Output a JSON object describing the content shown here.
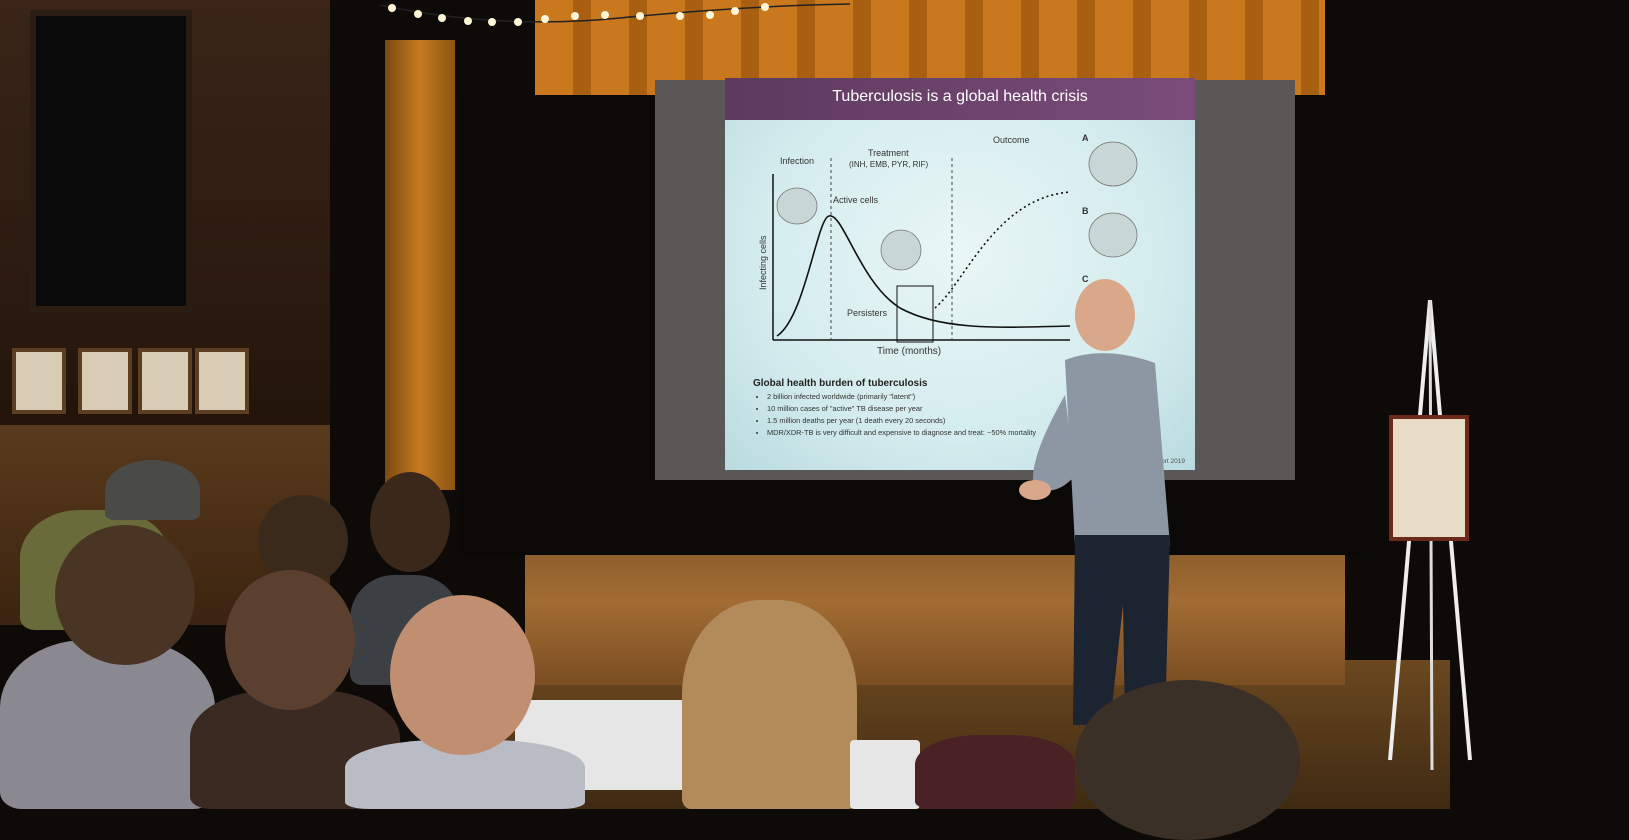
{
  "scene": "presentation",
  "slide": {
    "title": "Tuberculosis is a global health crisis",
    "phases": {
      "infection": "Infection",
      "treatment": "Treatment",
      "treatment_drugs": "(INH, EMB, PYR, RIF)",
      "outcome": "Outcome"
    },
    "curve_labels": {
      "active_cells": "Active cells",
      "persisters": "Persisters"
    },
    "axis": {
      "y_label": "Infecting cells",
      "x_label": "Time (months)"
    },
    "outcome_options": [
      "A",
      "B",
      "C"
    ],
    "burden_heading": "Global health burden of tuberculosis",
    "burden_items": [
      "2 billion infected worldwide (primarily \"latent\")",
      "10 million cases of \"active\" TB disease per year",
      "1.5 million deaths per year (1 death every 20 seconds)",
      "MDR/XDR-TB is very difficult and expensive to diagnose and treat: ~50% mortality"
    ],
    "citation": "World Health Organization Global TB Report 2019"
  },
  "colors": {
    "slide_banner": "#6a4470",
    "slide_background": "#dff1f2",
    "curtain": "#c9781e",
    "stage_wood": "#a26c33"
  }
}
